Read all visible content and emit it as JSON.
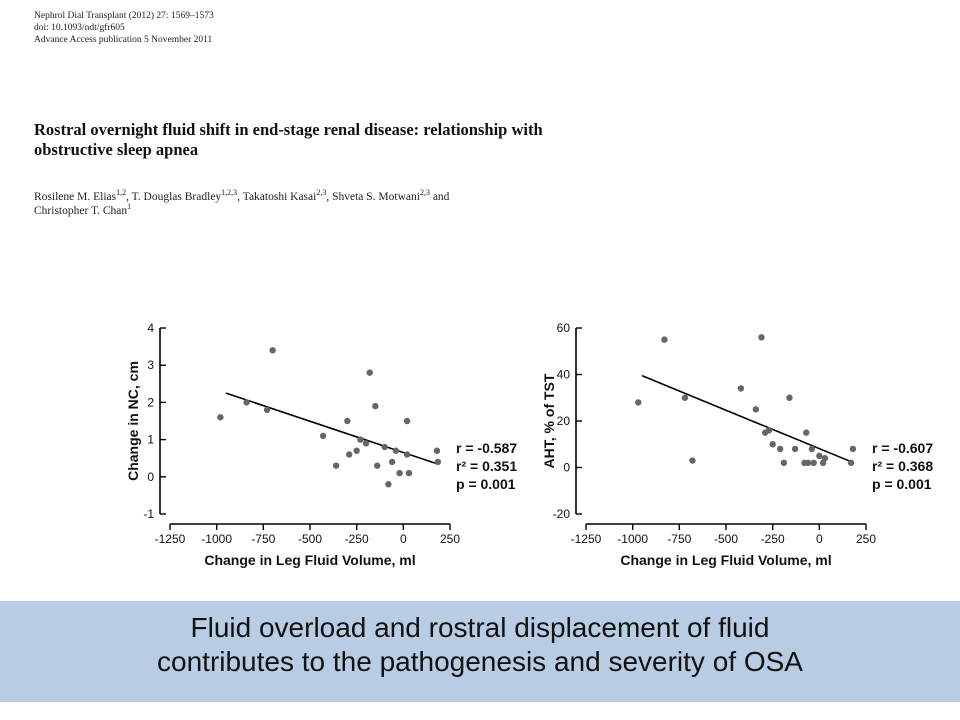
{
  "paper": {
    "journal_line": "Nephrol Dial Transplant (2012) 27: 1569–1573",
    "doi_line": "doi: 10.1093/ndt/gfr605",
    "access_line": "Advance Access publication 5 November 2011",
    "title_line1": "Rostral overnight fluid shift in end-stage renal disease: relationship with",
    "title_line2": "obstructive sleep apnea",
    "authors": [
      {
        "name": "Rosilene M. Elias",
        "sup": "1,2",
        "sep": ", "
      },
      {
        "name": "T. Douglas Bradley",
        "sup": "1,2,3",
        "sep": ", "
      },
      {
        "name": "Takatoshi Kasai",
        "sup": "2,3",
        "sep": ", "
      },
      {
        "name": "Shveta S. Motwani",
        "sup": "2,3",
        "sep": " and "
      },
      {
        "name": "Christopher T. Chan",
        "sup": "1",
        "sep": ""
      }
    ]
  },
  "chart_data": [
    {
      "type": "scatter",
      "xlabel": "Change in Leg Fluid Volume, ml",
      "ylabel": "Change in NC, cm",
      "xlim": [
        -1250,
        250
      ],
      "ylim": [
        -1,
        4
      ],
      "xticks": [
        -1250,
        -1000,
        -750,
        -500,
        -250,
        0,
        250
      ],
      "yticks": [
        -1,
        0,
        1,
        2,
        3,
        4
      ],
      "grid": false,
      "points": [
        {
          "x": -980,
          "y": 1.6
        },
        {
          "x": -840,
          "y": 2.0
        },
        {
          "x": -730,
          "y": 1.8
        },
        {
          "x": -700,
          "y": 3.4
        },
        {
          "x": -430,
          "y": 1.1
        },
        {
          "x": -360,
          "y": 0.3
        },
        {
          "x": -300,
          "y": 1.5
        },
        {
          "x": -290,
          "y": 0.6
        },
        {
          "x": -250,
          "y": 0.7
        },
        {
          "x": -230,
          "y": 1.0
        },
        {
          "x": -200,
          "y": 0.9
        },
        {
          "x": -180,
          "y": 2.8
        },
        {
          "x": -150,
          "y": 1.9
        },
        {
          "x": -140,
          "y": 0.3
        },
        {
          "x": -100,
          "y": 0.8
        },
        {
          "x": -80,
          "y": -0.2
        },
        {
          "x": -60,
          "y": 0.4
        },
        {
          "x": -40,
          "y": 0.7
        },
        {
          "x": -20,
          "y": 0.1
        },
        {
          "x": 20,
          "y": 0.6
        },
        {
          "x": 20,
          "y": 1.5
        },
        {
          "x": 30,
          "y": 0.1
        },
        {
          "x": 180,
          "y": 0.7
        },
        {
          "x": 185,
          "y": 0.4
        }
      ],
      "regression": {
        "x": [
          -950,
          180
        ],
        "y": [
          2.25,
          0.35
        ]
      },
      "stats": [
        "r = -0.587",
        "r² = 0.351",
        "p = 0.001"
      ]
    },
    {
      "type": "scatter",
      "xlabel": "Change in Leg Fluid Volume, ml",
      "ylabel": "AHT, % of TST",
      "xlim": [
        -1250,
        250
      ],
      "ylim": [
        -20,
        60
      ],
      "xticks": [
        -1250,
        -1000,
        -750,
        -500,
        -250,
        0,
        250
      ],
      "yticks": [
        -20,
        0,
        20,
        40,
        60
      ],
      "grid": false,
      "points": [
        {
          "x": -970,
          "y": 28
        },
        {
          "x": -830,
          "y": 55
        },
        {
          "x": -720,
          "y": 30
        },
        {
          "x": -680,
          "y": 3
        },
        {
          "x": -420,
          "y": 34
        },
        {
          "x": -340,
          "y": 25
        },
        {
          "x": -310,
          "y": 56
        },
        {
          "x": -290,
          "y": 15
        },
        {
          "x": -270,
          "y": 16
        },
        {
          "x": -250,
          "y": 10
        },
        {
          "x": -210,
          "y": 8
        },
        {
          "x": -190,
          "y": 2
        },
        {
          "x": -160,
          "y": 30
        },
        {
          "x": -130,
          "y": 8
        },
        {
          "x": -80,
          "y": 2
        },
        {
          "x": -70,
          "y": 15
        },
        {
          "x": -60,
          "y": 2
        },
        {
          "x": -40,
          "y": 8
        },
        {
          "x": -30,
          "y": 2
        },
        {
          "x": 0,
          "y": 5
        },
        {
          "x": 20,
          "y": 2
        },
        {
          "x": 30,
          "y": 4
        },
        {
          "x": 170,
          "y": 2
        },
        {
          "x": 180,
          "y": 8
        }
      ],
      "regression": {
        "x": [
          -950,
          170
        ],
        "y": [
          39.5,
          2.5
        ]
      },
      "stats": [
        "r = -0.607",
        "r² = 0.368",
        "p = 0.001"
      ]
    }
  ],
  "banner": {
    "line1": "Fluid overload and rostral displacement of fluid",
    "line2": "contributes to the pathogenesis and severity of OSA",
    "color": "#b8cce4"
  }
}
